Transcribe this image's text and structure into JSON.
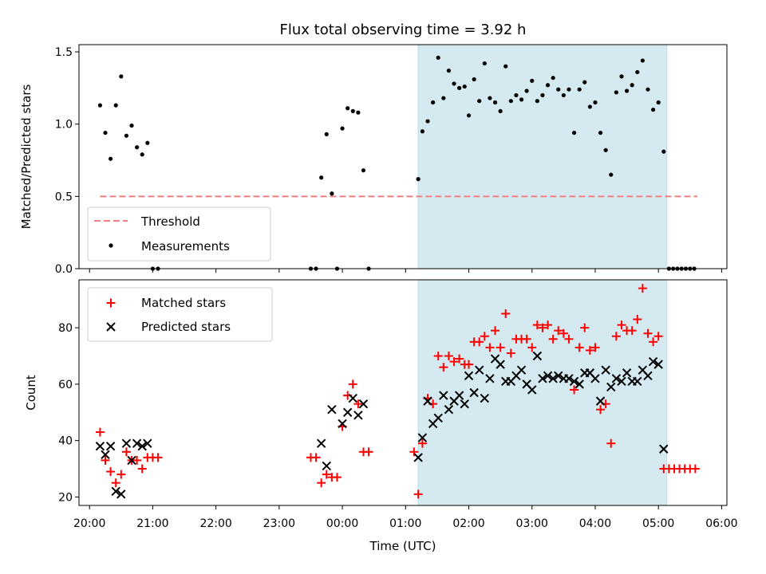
{
  "colors": {
    "highlight": "#d4eaf0",
    "highlight_edge": "#b8dce6",
    "threshold": "#f08080",
    "matched": "#ff0000",
    "predicted": "#000000",
    "measurements": "#000000"
  },
  "chart_data": [
    {
      "type": "scatter",
      "title": "Flux total observing time = 3.92 h",
      "ylabel": "Matched/Predicted stars",
      "xlim": [
        "19:50",
        "06:05"
      ],
      "ylim": [
        0,
        1.55
      ],
      "x_ticks": [
        "20:00",
        "21:00",
        "22:00",
        "23:00",
        "00:00",
        "01:00",
        "02:00",
        "03:00",
        "04:00",
        "05:00",
        "06:00"
      ],
      "y_ticks": [
        "0.0",
        "0.5",
        "1.0",
        "1.5"
      ],
      "highlight_span": [
        "01:12",
        "05:08"
      ],
      "legend": {
        "position": "lower-left",
        "entries": [
          "Threshold",
          "Measurements"
        ]
      },
      "series": [
        {
          "name": "Threshold",
          "kind": "dashed-line",
          "x": [
            "20:10",
            "05:37"
          ],
          "y": [
            0.5,
            0.5
          ]
        },
        {
          "name": "Measurements",
          "kind": "dot",
          "points": [
            [
              "20:10",
              1.13
            ],
            [
              "20:15",
              0.94
            ],
            [
              "20:20",
              0.76
            ],
            [
              "20:25",
              1.13
            ],
            [
              "20:30",
              1.33
            ],
            [
              "20:35",
              0.92
            ],
            [
              "20:40",
              0.99
            ],
            [
              "20:45",
              0.84
            ],
            [
              "20:50",
              0.79
            ],
            [
              "20:55",
              0.87
            ],
            [
              "21:00",
              0
            ],
            [
              "21:05",
              0
            ],
            [
              "23:30",
              0
            ],
            [
              "23:35",
              0
            ],
            [
              "23:40",
              0.63
            ],
            [
              "23:45",
              0.93
            ],
            [
              "23:50",
              0.52
            ],
            [
              "23:55",
              0
            ],
            [
              "00:00",
              0.97
            ],
            [
              "00:05",
              1.11
            ],
            [
              "00:10",
              1.09
            ],
            [
              "00:15",
              1.08
            ],
            [
              "00:20",
              0.68
            ],
            [
              "00:25",
              0
            ],
            [
              "01:12",
              0.62
            ],
            [
              "01:16",
              0.95
            ],
            [
              "01:21",
              1.02
            ],
            [
              "01:26",
              1.15
            ],
            [
              "01:31",
              1.46
            ],
            [
              "01:36",
              1.18
            ],
            [
              "01:41",
              1.37
            ],
            [
              "01:46",
              1.28
            ],
            [
              "01:51",
              1.25
            ],
            [
              "01:56",
              1.26
            ],
            [
              "02:00",
              1.06
            ],
            [
              "02:05",
              1.31
            ],
            [
              "02:10",
              1.16
            ],
            [
              "02:15",
              1.42
            ],
            [
              "02:20",
              1.18
            ],
            [
              "02:25",
              1.15
            ],
            [
              "02:30",
              1.09
            ],
            [
              "02:35",
              1.4
            ],
            [
              "02:40",
              1.16
            ],
            [
              "02:45",
              1.2
            ],
            [
              "02:50",
              1.17
            ],
            [
              "02:55",
              1.23
            ],
            [
              "03:00",
              1.3
            ],
            [
              "03:05",
              1.16
            ],
            [
              "03:10",
              1.2
            ],
            [
              "03:15",
              1.27
            ],
            [
              "03:20",
              1.32
            ],
            [
              "03:25",
              1.24
            ],
            [
              "03:30",
              1.2
            ],
            [
              "03:35",
              1.24
            ],
            [
              "03:40",
              0.94
            ],
            [
              "03:45",
              1.24
            ],
            [
              "03:50",
              1.29
            ],
            [
              "03:55",
              1.12
            ],
            [
              "04:00",
              1.15
            ],
            [
              "04:05",
              0.94
            ],
            [
              "04:10",
              0.82
            ],
            [
              "04:15",
              0.65
            ],
            [
              "04:20",
              1.22
            ],
            [
              "04:25",
              1.33
            ],
            [
              "04:30",
              1.23
            ],
            [
              "04:35",
              1.27
            ],
            [
              "04:40",
              1.36
            ],
            [
              "04:45",
              1.44
            ],
            [
              "04:50",
              1.24
            ],
            [
              "04:55",
              1.1
            ],
            [
              "05:00",
              1.15
            ],
            [
              "05:05",
              0.81
            ],
            [
              "05:10",
              0
            ],
            [
              "05:14",
              0
            ],
            [
              "05:18",
              0
            ],
            [
              "05:22",
              0
            ],
            [
              "05:26",
              0
            ],
            [
              "05:30",
              0
            ],
            [
              "05:34",
              0
            ]
          ]
        }
      ]
    },
    {
      "type": "scatter",
      "xlabel": "Time (UTC)",
      "ylabel": "Count",
      "xlim": [
        "19:50",
        "06:05"
      ],
      "ylim": [
        17,
        97
      ],
      "x_ticks": [
        "20:00",
        "21:00",
        "22:00",
        "23:00",
        "00:00",
        "01:00",
        "02:00",
        "03:00",
        "04:00",
        "05:00",
        "06:00"
      ],
      "y_ticks": [
        "20",
        "40",
        "60",
        "80"
      ],
      "highlight_span": [
        "01:12",
        "05:08"
      ],
      "legend": {
        "position": "top-left",
        "entries": [
          "Matched stars",
          "Predicted stars"
        ]
      },
      "series": [
        {
          "name": "Matched stars",
          "marker": "plus",
          "points": [
            [
              "20:10",
              43
            ],
            [
              "20:15",
              33
            ],
            [
              "20:20",
              29
            ],
            [
              "20:25",
              25
            ],
            [
              "20:30",
              28
            ],
            [
              "20:35",
              36
            ],
            [
              "20:40",
              33
            ],
            [
              "20:45",
              33
            ],
            [
              "20:50",
              30
            ],
            [
              "20:55",
              34
            ],
            [
              "21:00",
              34
            ],
            [
              "21:05",
              34
            ],
            [
              "23:30",
              34
            ],
            [
              "23:35",
              34
            ],
            [
              "23:40",
              25
            ],
            [
              "23:45",
              28
            ],
            [
              "23:50",
              27
            ],
            [
              "23:55",
              27
            ],
            [
              "00:00",
              45
            ],
            [
              "00:05",
              56
            ],
            [
              "00:10",
              60
            ],
            [
              "00:15",
              53
            ],
            [
              "00:20",
              36
            ],
            [
              "00:25",
              36
            ],
            [
              "01:08",
              36
            ],
            [
              "01:12",
              21
            ],
            [
              "01:16",
              39
            ],
            [
              "01:21",
              55
            ],
            [
              "01:26",
              53
            ],
            [
              "01:31",
              70
            ],
            [
              "01:36",
              66
            ],
            [
              "01:41",
              70
            ],
            [
              "01:46",
              68
            ],
            [
              "01:51",
              69
            ],
            [
              "01:56",
              67
            ],
            [
              "02:00",
              67
            ],
            [
              "02:05",
              75
            ],
            [
              "02:10",
              75
            ],
            [
              "02:15",
              77
            ],
            [
              "02:20",
              73
            ],
            [
              "02:25",
              79
            ],
            [
              "02:30",
              73
            ],
            [
              "02:35",
              85
            ],
            [
              "02:40",
              71
            ],
            [
              "02:45",
              76
            ],
            [
              "02:50",
              76
            ],
            [
              "02:55",
              76
            ],
            [
              "03:00",
              73
            ],
            [
              "03:05",
              81
            ],
            [
              "03:10",
              80
            ],
            [
              "03:15",
              81
            ],
            [
              "03:20",
              76
            ],
            [
              "03:25",
              79
            ],
            [
              "03:30",
              78
            ],
            [
              "03:35",
              76
            ],
            [
              "03:40",
              58
            ],
            [
              "03:45",
              73
            ],
            [
              "03:50",
              80
            ],
            [
              "03:55",
              72
            ],
            [
              "04:00",
              73
            ],
            [
              "04:05",
              51
            ],
            [
              "04:10",
              53
            ],
            [
              "04:15",
              39
            ],
            [
              "04:20",
              77
            ],
            [
              "04:25",
              81
            ],
            [
              "04:30",
              79
            ],
            [
              "04:35",
              79
            ],
            [
              "04:40",
              83
            ],
            [
              "04:45",
              94
            ],
            [
              "04:50",
              78
            ],
            [
              "04:55",
              75
            ],
            [
              "05:00",
              77
            ],
            [
              "05:05",
              30
            ],
            [
              "05:10",
              30
            ],
            [
              "05:15",
              30
            ],
            [
              "05:20",
              30
            ],
            [
              "05:25",
              30
            ],
            [
              "05:30",
              30
            ],
            [
              "05:35",
              30
            ]
          ]
        },
        {
          "name": "Predicted stars",
          "marker": "x",
          "points": [
            [
              "20:10",
              38
            ],
            [
              "20:15",
              35
            ],
            [
              "20:20",
              38
            ],
            [
              "20:25",
              22
            ],
            [
              "20:30",
              21
            ],
            [
              "20:35",
              39
            ],
            [
              "20:40",
              33
            ],
            [
              "20:45",
              39
            ],
            [
              "20:50",
              38
            ],
            [
              "20:55",
              39
            ],
            [
              "23:40",
              39
            ],
            [
              "23:45",
              31
            ],
            [
              "23:50",
              51
            ],
            [
              "00:00",
              46
            ],
            [
              "00:05",
              50
            ],
            [
              "00:10",
              55
            ],
            [
              "00:15",
              49
            ],
            [
              "00:20",
              53
            ],
            [
              "01:12",
              34
            ],
            [
              "01:16",
              41
            ],
            [
              "01:21",
              54
            ],
            [
              "01:26",
              46
            ],
            [
              "01:31",
              48
            ],
            [
              "01:36",
              56
            ],
            [
              "01:41",
              51
            ],
            [
              "01:46",
              54
            ],
            [
              "01:51",
              56
            ],
            [
              "01:56",
              53
            ],
            [
              "02:00",
              63
            ],
            [
              "02:05",
              57
            ],
            [
              "02:10",
              65
            ],
            [
              "02:15",
              55
            ],
            [
              "02:20",
              62
            ],
            [
              "02:25",
              69
            ],
            [
              "02:30",
              67
            ],
            [
              "02:35",
              61
            ],
            [
              "02:40",
              61
            ],
            [
              "02:45",
              63
            ],
            [
              "02:50",
              65
            ],
            [
              "02:55",
              60
            ],
            [
              "03:00",
              58
            ],
            [
              "03:05",
              70
            ],
            [
              "03:10",
              62
            ],
            [
              "03:15",
              63
            ],
            [
              "03:20",
              62
            ],
            [
              "03:25",
              63
            ],
            [
              "03:30",
              62
            ],
            [
              "03:35",
              62
            ],
            [
              "03:40",
              61
            ],
            [
              "03:45",
              60
            ],
            [
              "03:50",
              64
            ],
            [
              "03:55",
              64
            ],
            [
              "04:00",
              62
            ],
            [
              "04:05",
              54
            ],
            [
              "04:10",
              65
            ],
            [
              "04:15",
              59
            ],
            [
              "04:20",
              62
            ],
            [
              "04:25",
              61
            ],
            [
              "04:30",
              64
            ],
            [
              "04:35",
              61
            ],
            [
              "04:40",
              61
            ],
            [
              "04:45",
              65
            ],
            [
              "04:50",
              63
            ],
            [
              "04:55",
              68
            ],
            [
              "05:00",
              67
            ],
            [
              "05:05",
              37
            ]
          ]
        }
      ]
    }
  ]
}
